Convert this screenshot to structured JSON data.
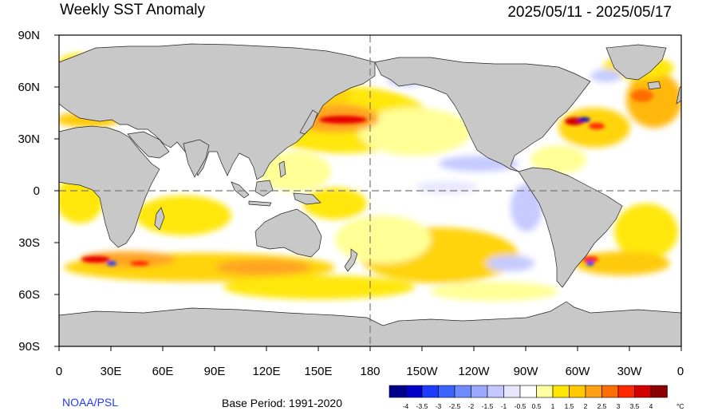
{
  "title": "Weekly SST Anomaly",
  "date_range": "2025/05/11 - 2025/05/17",
  "provider": "NOAA/PSL",
  "base_period": "Base Period: 1991-2020",
  "lat_labels": [
    "90N",
    "60N",
    "30N",
    "0",
    "30S",
    "60S",
    "90S"
  ],
  "lon_labels": [
    "0",
    "30E",
    "60E",
    "90E",
    "120E",
    "150E",
    "180",
    "150W",
    "120W",
    "90W",
    "60W",
    "30W",
    "0"
  ],
  "legend": {
    "unit": "°C",
    "ticks": [
      "-4",
      "-3.5",
      "-3",
      "-2.5",
      "-2",
      "-1.5",
      "-1",
      "-0.5",
      "0.5",
      "1",
      "1.5",
      "2",
      "2.5",
      "3",
      "3.5",
      "4"
    ],
    "colors": [
      "#00008c",
      "#0000c8",
      "#1e3cff",
      "#3c64ff",
      "#6e8cff",
      "#9aa8ff",
      "#c3c8ff",
      "#e6e6ff",
      "#ffffff",
      "#ffffa0",
      "#ffe600",
      "#ffc800",
      "#ffa014",
      "#ff6e00",
      "#ff2800",
      "#d20000",
      "#8c0000"
    ]
  },
  "colors": {
    "land": "#c8c8c8",
    "ocean_neutral": "#ffffff",
    "warm_light": "#ffffa0",
    "warm_mid": "#ffd200",
    "warm_strong": "#ff8c00",
    "hot": "#e60000",
    "cool_light": "#c3c8ff",
    "cool_strong": "#0000c8"
  }
}
